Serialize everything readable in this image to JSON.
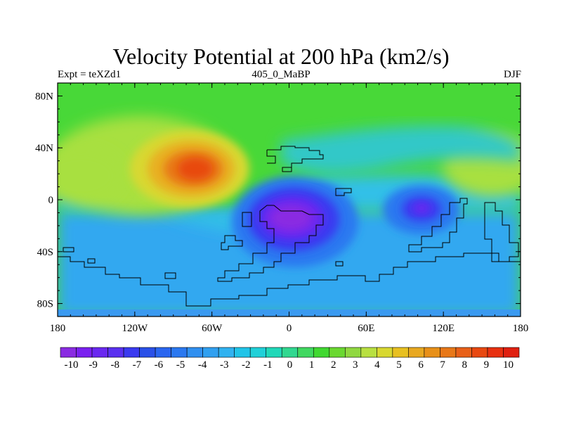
{
  "chart_data": {
    "type": "heatmap",
    "title": "Velocity Potential at 200 hPa (km2/s)",
    "subtitle_left": "Expt = teXZd1",
    "subtitle_center": "405_0_MaBP",
    "subtitle_right": "DJF",
    "x_ticks": [
      "180",
      "120W",
      "60W",
      "0",
      "60E",
      "120E",
      "180"
    ],
    "x_tick_values": [
      -180,
      -120,
      -60,
      0,
      60,
      120,
      180
    ],
    "y_ticks": [
      "80N",
      "40N",
      "0",
      "40S",
      "80S"
    ],
    "y_tick_values": [
      80,
      40,
      0,
      -40,
      -80
    ],
    "xlim": [
      -180,
      180
    ],
    "ylim": [
      -90,
      90
    ],
    "colorbar_labels": [
      "-10",
      "-9",
      "-8",
      "-7",
      "-6",
      "-5",
      "-4",
      "-3",
      "-2",
      "-1",
      "0",
      "1",
      "2",
      "3",
      "4",
      "5",
      "6",
      "7",
      "8",
      "9",
      "10"
    ],
    "colorbar_min": -10.5,
    "colorbar_max": 10.5,
    "colorbar_colors": [
      "#8a2be2",
      "#7a20f0",
      "#6a28f0",
      "#5a30f0",
      "#3a3af0",
      "#2a50e8",
      "#2a66f0",
      "#2a78f0",
      "#3090f0",
      "#30a0f0",
      "#30b2f0",
      "#20c4e8",
      "#20d0d8",
      "#20d8b8",
      "#30d890",
      "#40d860",
      "#40d830",
      "#6ad830",
      "#90d840",
      "#b8e040",
      "#d8d830",
      "#e8c020",
      "#e8a820",
      "#e89018",
      "#e87818",
      "#e86018",
      "#e84810",
      "#e83010",
      "#e02010"
    ],
    "field_centers": [
      {
        "name": "positive maximum (N Pacific / N America)",
        "lon": -80,
        "lat": 30,
        "value": 9.0
      },
      {
        "name": "negative minimum (tropical Africa)",
        "lon": 5,
        "lat": -15,
        "value": -9.5
      },
      {
        "name": "negative minimum (Indian Ocean)",
        "lon": 105,
        "lat": -8,
        "value": -7.5
      }
    ]
  }
}
